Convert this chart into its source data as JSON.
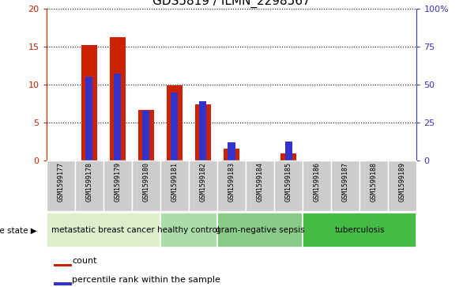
{
  "title": "GDS5819 / ILMN_2298567",
  "samples": [
    "GSM1599177",
    "GSM1599178",
    "GSM1599179",
    "GSM1599180",
    "GSM1599181",
    "GSM1599182",
    "GSM1599183",
    "GSM1599184",
    "GSM1599185",
    "GSM1599186",
    "GSM1599187",
    "GSM1599188",
    "GSM1599189"
  ],
  "count_values": [
    0,
    15.2,
    16.2,
    6.7,
    9.9,
    7.4,
    1.6,
    0,
    1.0,
    0,
    0,
    0,
    0
  ],
  "percentile_values": [
    0,
    55.0,
    57.5,
    33.0,
    45.0,
    39.0,
    12.0,
    0,
    12.5,
    0,
    0,
    0,
    0
  ],
  "ylim_left": [
    0,
    20
  ],
  "ylim_right": [
    0,
    100
  ],
  "yticks_left": [
    0,
    5,
    10,
    15,
    20
  ],
  "ytick_labels_left": [
    "0",
    "5",
    "10",
    "15",
    "20"
  ],
  "yticks_right": [
    0,
    25,
    50,
    75,
    100
  ],
  "ytick_labels_right": [
    "0",
    "25",
    "50",
    "75",
    "100%"
  ],
  "bar_color_red": "#cc2200",
  "bar_color_blue": "#3333cc",
  "disease_groups": [
    {
      "label": "metastatic breast cancer",
      "indices": [
        0,
        1,
        2,
        3
      ],
      "color": "#ddeecc"
    },
    {
      "label": "healthy control",
      "indices": [
        4,
        5
      ],
      "color": "#aaddaa"
    },
    {
      "label": "gram-negative sepsis",
      "indices": [
        6,
        7,
        8
      ],
      "color": "#88cc88"
    },
    {
      "label": "tuberculosis",
      "indices": [
        9,
        10,
        11,
        12
      ],
      "color": "#44bb44"
    }
  ],
  "disease_state_label": "disease state",
  "legend_count": "count",
  "legend_percentile": "percentile rank within the sample",
  "sample_bg_color": "#cccccc",
  "title_fontsize": 11,
  "tick_fontsize": 8,
  "axis_label_color_red": "#cc2200",
  "axis_label_color_blue": "#3333cc",
  "fig_width": 5.86,
  "fig_height": 3.63,
  "fig_dpi": 100
}
